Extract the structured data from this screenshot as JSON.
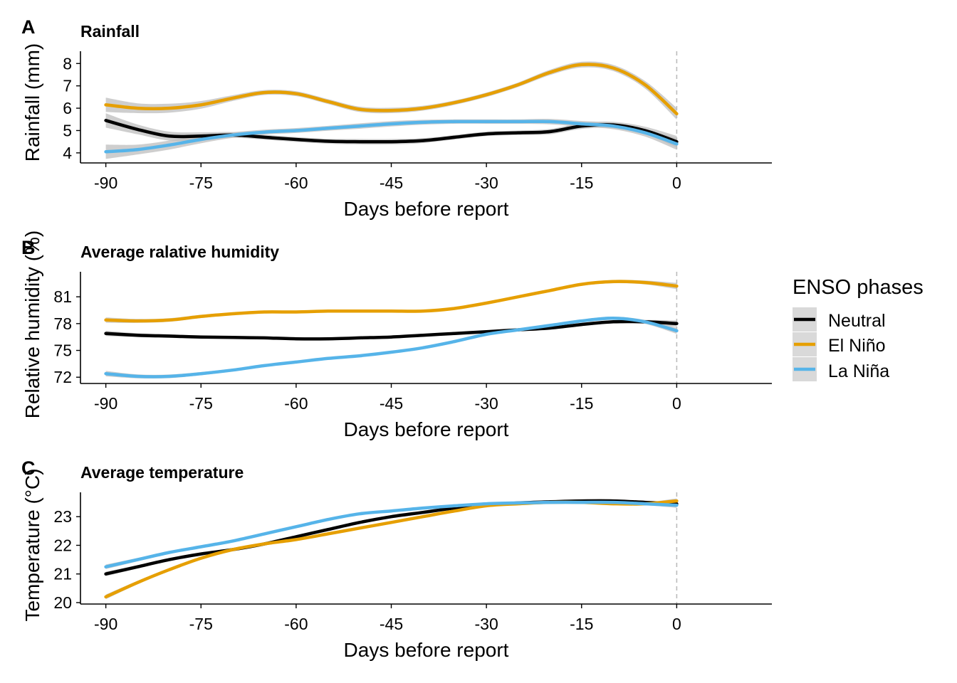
{
  "legend": {
    "title": "ENSO phases",
    "items": [
      {
        "label": "Neutral",
        "color": "#000000"
      },
      {
        "label": "El Niño",
        "color": "#E69F00"
      },
      {
        "label": "La Niña",
        "color": "#56B4E9"
      }
    ]
  },
  "band_color": "#bdbdbd",
  "reference_line": {
    "x": 0,
    "style": "dashed",
    "color": "#bbbbbb"
  },
  "chart_data": [
    {
      "type": "line",
      "panel": "A",
      "title": "Rainfall",
      "xlabel": "Days before report",
      "ylabel": "Rainfall (mm)",
      "xlim": [
        -94,
        15
      ],
      "ylim": [
        3.55,
        8.55
      ],
      "xticks": [
        -90,
        -75,
        -60,
        -45,
        -30,
        -15,
        0
      ],
      "yticks": [
        4,
        5,
        6,
        7,
        8
      ],
      "x": [
        -90,
        -85,
        -80,
        -75,
        -70,
        -65,
        -60,
        -55,
        -50,
        -45,
        -40,
        -35,
        -30,
        -25,
        -20,
        -15,
        -10,
        -5,
        0
      ],
      "band_halfwidth": [
        0.32,
        0.22,
        0.2,
        0.17,
        0.13,
        0.11,
        0.11,
        0.11,
        0.12,
        0.12,
        0.11,
        0.1,
        0.1,
        0.1,
        0.12,
        0.13,
        0.14,
        0.17,
        0.26
      ],
      "series": [
        {
          "name": "Neutral",
          "values": [
            5.45,
            5.05,
            4.75,
            4.75,
            4.8,
            4.7,
            4.6,
            4.52,
            4.5,
            4.5,
            4.55,
            4.7,
            4.85,
            4.9,
            4.95,
            5.2,
            5.25,
            5.0,
            4.5
          ]
        },
        {
          "name": "El Niño",
          "values": [
            6.15,
            6.0,
            6.0,
            6.15,
            6.45,
            6.7,
            6.65,
            6.3,
            5.95,
            5.9,
            6.0,
            6.25,
            6.6,
            7.05,
            7.6,
            7.95,
            7.8,
            7.05,
            5.75
          ]
        },
        {
          "name": "La Niña",
          "values": [
            4.05,
            4.15,
            4.35,
            4.6,
            4.8,
            4.93,
            5.0,
            5.1,
            5.2,
            5.3,
            5.37,
            5.4,
            5.4,
            5.4,
            5.4,
            5.3,
            5.2,
            4.9,
            4.4
          ]
        }
      ]
    },
    {
      "type": "line",
      "panel": "B",
      "title": "Average ralative humidity",
      "xlabel": "Days before report",
      "ylabel": "Relative humidity (%)",
      "xlim": [
        -94,
        15
      ],
      "ylim": [
        71.3,
        83.8
      ],
      "xticks": [
        -90,
        -75,
        -60,
        -45,
        -30,
        -15,
        0
      ],
      "yticks": [
        72,
        75,
        78,
        81
      ],
      "x": [
        -90,
        -85,
        -80,
        -75,
        -70,
        -65,
        -60,
        -55,
        -50,
        -45,
        -40,
        -35,
        -30,
        -25,
        -20,
        -15,
        -10,
        -5,
        0
      ],
      "band_halfwidth": [
        0.3,
        0.22,
        0.2,
        0.18,
        0.15,
        0.14,
        0.13,
        0.13,
        0.13,
        0.13,
        0.13,
        0.13,
        0.14,
        0.14,
        0.15,
        0.16,
        0.18,
        0.22,
        0.35
      ],
      "series": [
        {
          "name": "Neutral",
          "values": [
            76.9,
            76.7,
            76.6,
            76.5,
            76.45,
            76.4,
            76.3,
            76.3,
            76.4,
            76.5,
            76.7,
            76.9,
            77.1,
            77.3,
            77.5,
            77.9,
            78.2,
            78.2,
            78.0
          ]
        },
        {
          "name": "El Niño",
          "values": [
            78.4,
            78.3,
            78.4,
            78.8,
            79.1,
            79.3,
            79.3,
            79.4,
            79.4,
            79.4,
            79.4,
            79.7,
            80.3,
            81.0,
            81.7,
            82.4,
            82.7,
            82.6,
            82.2
          ]
        },
        {
          "name": "La Niña",
          "values": [
            72.4,
            72.1,
            72.1,
            72.4,
            72.8,
            73.3,
            73.7,
            74.1,
            74.4,
            74.8,
            75.3,
            76.0,
            76.8,
            77.3,
            77.8,
            78.3,
            78.6,
            78.2,
            77.2
          ]
        }
      ]
    },
    {
      "type": "line",
      "panel": "C",
      "title": "Average temperature",
      "xlabel": "Days before report",
      "ylabel": "Temperature (°C)",
      "xlim": [
        -94,
        15
      ],
      "ylim": [
        19.95,
        23.85
      ],
      "xticks": [
        -90,
        -75,
        -60,
        -45,
        -30,
        -15,
        0
      ],
      "yticks": [
        20,
        21,
        22,
        23
      ],
      "x": [
        -90,
        -85,
        -80,
        -75,
        -70,
        -65,
        -60,
        -55,
        -50,
        -45,
        -40,
        -35,
        -30,
        -25,
        -20,
        -15,
        -10,
        -5,
        0
      ],
      "band_halfwidth": [
        0.08,
        0.06,
        0.05,
        0.04,
        0.04,
        0.04,
        0.04,
        0.04,
        0.04,
        0.04,
        0.04,
        0.04,
        0.04,
        0.04,
        0.04,
        0.04,
        0.04,
        0.05,
        0.09
      ],
      "series": [
        {
          "name": "Neutral",
          "values": [
            21.0,
            21.25,
            21.5,
            21.7,
            21.85,
            22.05,
            22.3,
            22.55,
            22.8,
            23.0,
            23.15,
            23.3,
            23.4,
            23.48,
            23.52,
            23.55,
            23.55,
            23.5,
            23.45
          ]
        },
        {
          "name": "El Niño",
          "values": [
            20.2,
            20.7,
            21.15,
            21.55,
            21.85,
            22.05,
            22.2,
            22.4,
            22.6,
            22.8,
            23.0,
            23.2,
            23.38,
            23.45,
            23.5,
            23.5,
            23.45,
            23.45,
            23.55
          ]
        },
        {
          "name": "La Niña",
          "values": [
            21.25,
            21.5,
            21.75,
            21.95,
            22.15,
            22.4,
            22.65,
            22.9,
            23.1,
            23.2,
            23.3,
            23.38,
            23.45,
            23.48,
            23.5,
            23.5,
            23.5,
            23.45,
            23.4
          ]
        }
      ]
    }
  ]
}
